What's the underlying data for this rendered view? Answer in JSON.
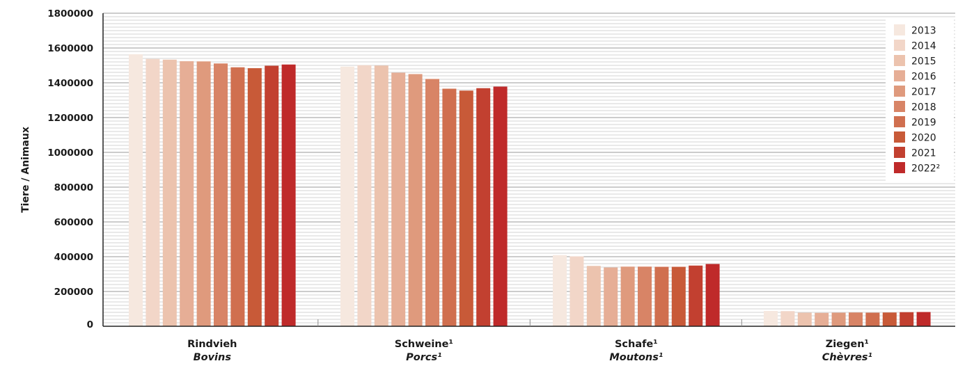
{
  "chart_data": {
    "type": "bar",
    "ylabel": "Tiere / Animaux",
    "ylim": [
      0,
      1800000
    ],
    "yticks": [
      "0",
      "200000",
      "400000",
      "600000",
      "800000",
      "1000000",
      "1200000",
      "1400000",
      "1600000",
      "1800000"
    ],
    "grid": "horizontal",
    "legend_position": "top-right",
    "categories": [
      {
        "de": "Rindvieh",
        "fr": "Bovins"
      },
      {
        "de": "Schweine¹",
        "fr": "Porcs¹"
      },
      {
        "de": "Schafe¹",
        "fr": "Moutons¹"
      },
      {
        "de": "Ziegen¹",
        "fr": "Chèvres¹"
      }
    ],
    "series": [
      {
        "name": "2013",
        "color": "#f6e8df",
        "values": [
          1564000,
          1493000,
          409000,
          88000
        ]
      },
      {
        "name": "2014",
        "color": "#f2d6c8",
        "values": [
          1537000,
          1501000,
          402000,
          87000
        ]
      },
      {
        "name": "2015",
        "color": "#ecc3ae",
        "values": [
          1533000,
          1499000,
          347000,
          78000
        ]
      },
      {
        "name": "2016",
        "color": "#e6ae96",
        "values": [
          1524000,
          1458000,
          338000,
          77000
        ]
      },
      {
        "name": "2017",
        "color": "#df9a7d",
        "values": [
          1523000,
          1450000,
          343000,
          78000
        ]
      },
      {
        "name": "2018",
        "color": "#d88466",
        "values": [
          1511000,
          1422000,
          343000,
          79000
        ]
      },
      {
        "name": "2019",
        "color": "#d06f4f",
        "values": [
          1489000,
          1366000,
          342000,
          78000
        ]
      },
      {
        "name": "2020",
        "color": "#c85a38",
        "values": [
          1484000,
          1355000,
          342000,
          79000
        ]
      },
      {
        "name": "2021",
        "color": "#c24030",
        "values": [
          1498000,
          1369000,
          349000,
          81000
        ]
      },
      {
        "name": "2022",
        "color": "#bf2a2a",
        "values": [
          1505000,
          1378000,
          358000,
          82000
        ]
      }
    ],
    "legend_labels": [
      "2013",
      "2014",
      "2015",
      "2016",
      "2017",
      "2018",
      "2019",
      "2020",
      "2021",
      "2022²"
    ]
  }
}
